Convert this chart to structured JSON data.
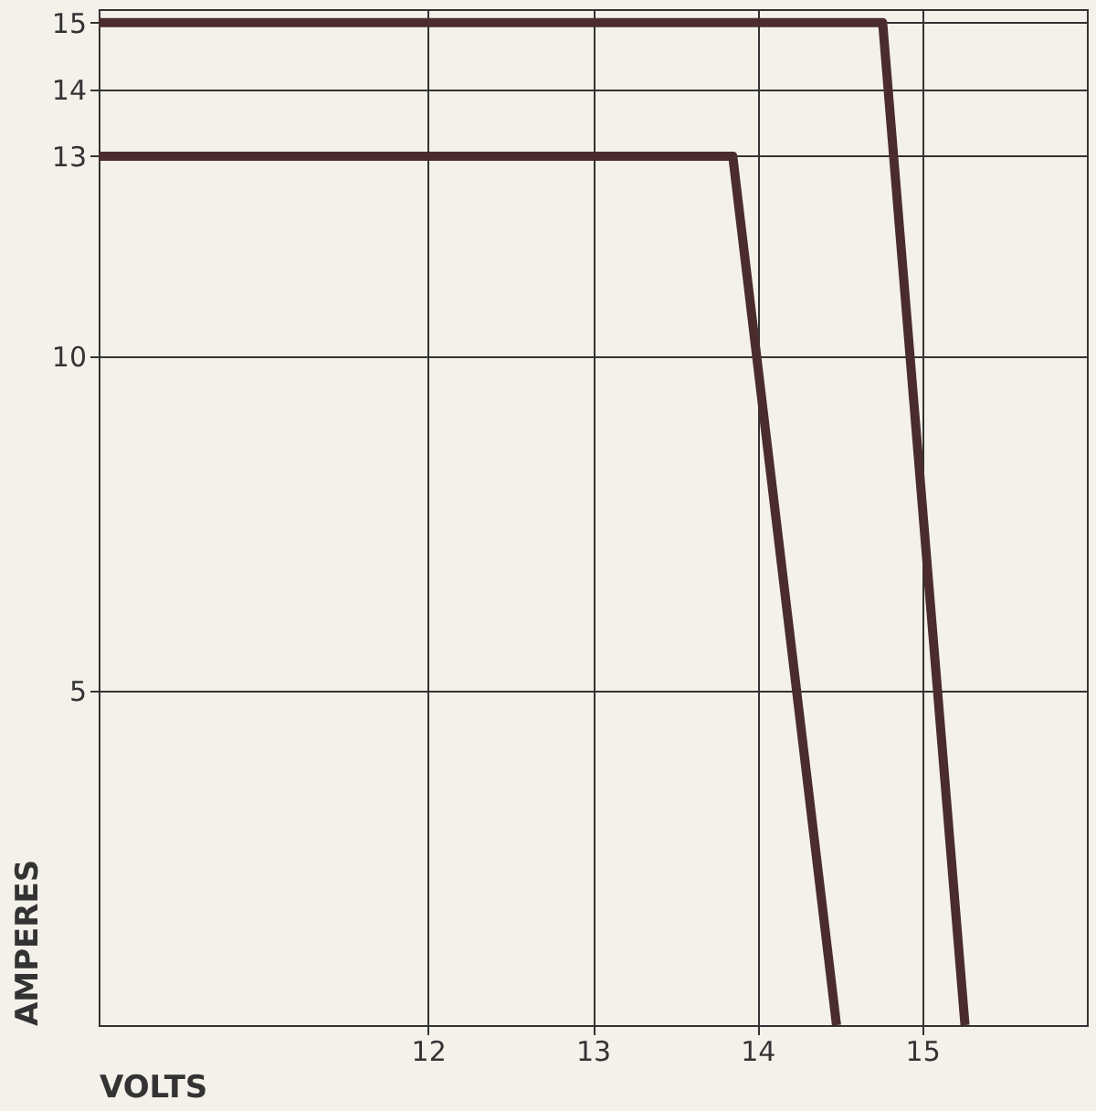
{
  "chart_data": {
    "type": "line",
    "xlabel": "VOLTS",
    "ylabel": "AMPERES",
    "series": [
      {
        "color": "#4a2c2e",
        "x": [
          10,
          14.76,
          15.26
        ],
        "values": [
          15,
          15,
          0
        ]
      },
      {
        "color": "#4a2c2e",
        "x": [
          10,
          13.85,
          14.48
        ],
        "values": [
          13,
          13,
          0
        ]
      }
    ],
    "xlim": [
      10,
      16
    ],
    "xticks": [
      12,
      13,
      14,
      15
    ],
    "ylim": [
      0,
      15.2
    ],
    "yticks": [
      5,
      10,
      13,
      14,
      15
    ],
    "grid": true,
    "marker": "none",
    "line_style": "solid",
    "legend": false
  }
}
